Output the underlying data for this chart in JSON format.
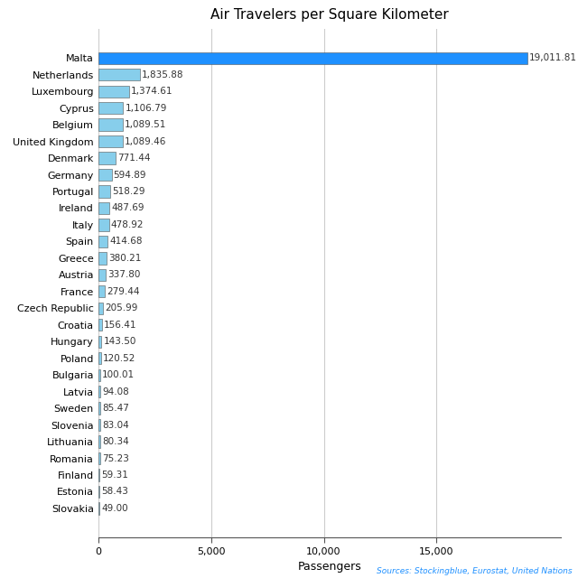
{
  "title": "Air Travelers per Square Kilometer",
  "xlabel": "Passengers",
  "source_text": "Sources: Stockingblue, Eurostat, United Nations",
  "categories": [
    "Malta",
    "Netherlands",
    "Luxembourg",
    "Cyprus",
    "Belgium",
    "United Kingdom",
    "Denmark",
    "Germany",
    "Portugal",
    "Ireland",
    "Italy",
    "Spain",
    "Greece",
    "Austria",
    "France",
    "Czech Republic",
    "Croatia",
    "Hungary",
    "Poland",
    "Bulgaria",
    "Latvia",
    "Sweden",
    "Slovenia",
    "Lithuania",
    "Romania",
    "Finland",
    "Estonia",
    "Slovakia"
  ],
  "values": [
    19011.81,
    1835.88,
    1374.61,
    1106.79,
    1089.51,
    1089.46,
    771.44,
    594.89,
    518.29,
    487.69,
    478.92,
    414.68,
    380.21,
    337.8,
    279.44,
    205.99,
    156.41,
    143.5,
    120.52,
    100.01,
    94.08,
    85.47,
    83.04,
    80.34,
    75.23,
    59.31,
    58.43,
    49.0
  ],
  "bar_color_malta": "#1e90ff",
  "bar_color_others": "#87ceeb",
  "label_color_value": "#333333",
  "label_color_source": "#1e90ff",
  "bar_edge_color": "#555555",
  "grid_color": "#cccccc",
  "background_color": "#ffffff",
  "xlim": [
    0,
    20500
  ],
  "xticks": [
    0,
    5000,
    10000,
    15000
  ],
  "title_fontsize": 11,
  "ylabel_fontsize": 8,
  "value_fontsize": 7.5,
  "xlabel_fontsize": 9,
  "tick_fontsize": 8,
  "source_fontsize": 6.5
}
